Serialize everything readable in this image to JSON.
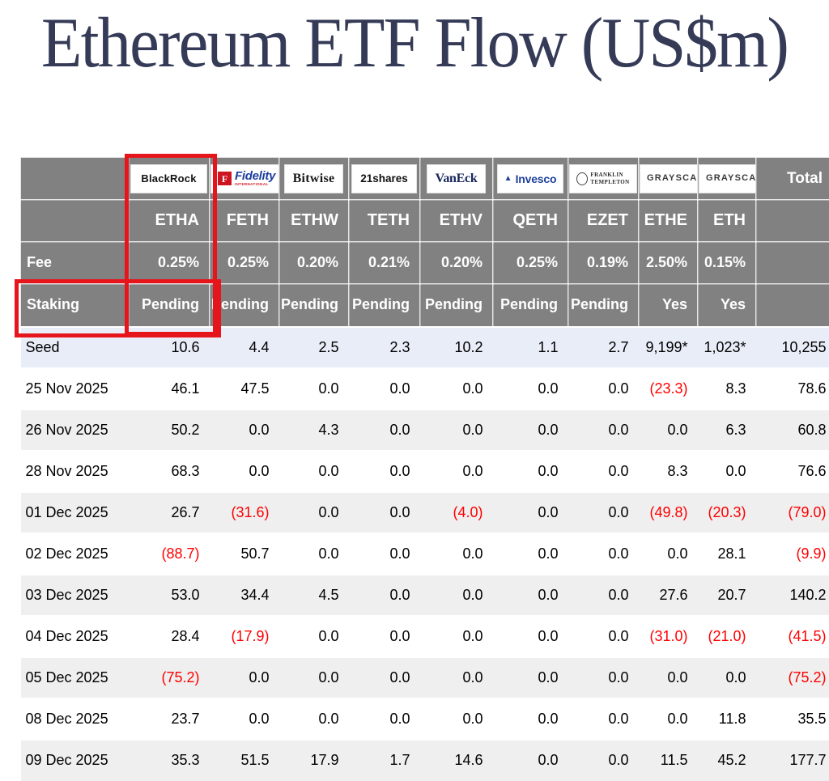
{
  "title": "Ethereum ETF Flow (US$m)",
  "colors": {
    "header_bg": "#818181",
    "seed_row_bg": "#e9edf8",
    "alt_row_bg": "#efefef",
    "negative_text": "#ff0000",
    "highlight_red": "#e6151c",
    "title_text": "#353b57"
  },
  "table": {
    "total_label": "Total",
    "fee_label": "Fee",
    "staking_label": "Staking",
    "providers": [
      {
        "ticker": "ETHA",
        "fee": "0.25%",
        "staking": "Pending",
        "logo": {
          "style": "blackrock",
          "text": "BlackRock"
        }
      },
      {
        "ticker": "FETH",
        "fee": "0.25%",
        "staking": "Pending",
        "logo": {
          "style": "fidelity",
          "icon": "F",
          "text": "Fidelity",
          "subtext": "INTERNATIONAL"
        }
      },
      {
        "ticker": "ETHW",
        "fee": "0.20%",
        "staking": "Pending",
        "logo": {
          "style": "bitwise",
          "text": "Bitwise"
        }
      },
      {
        "ticker": "TETH",
        "fee": "0.21%",
        "staking": "Pending",
        "logo": {
          "style": "shares21",
          "text": "21shares"
        }
      },
      {
        "ticker": "ETHV",
        "fee": "0.20%",
        "staking": "Pending",
        "logo": {
          "style": "vaneck",
          "text": "VanEck"
        }
      },
      {
        "ticker": "QETH",
        "fee": "0.25%",
        "staking": "Pending",
        "logo": {
          "style": "invesco",
          "icon": "▲",
          "text": "Invesco"
        }
      },
      {
        "ticker": "EZET",
        "fee": "0.19%",
        "staking": "Pending",
        "logo": {
          "style": "franklin",
          "lines": [
            "FRANKLIN",
            "TEMPLETON"
          ]
        }
      },
      {
        "ticker": "ETHE",
        "fee": "2.50%",
        "staking": "Yes",
        "logo": {
          "style": "grayscale",
          "text": "GRAYSCALE"
        }
      },
      {
        "ticker": "ETH",
        "fee": "0.15%",
        "staking": "Yes",
        "logo": {
          "style": "grayscale",
          "text": "GRAYSCALE"
        }
      }
    ],
    "rows": [
      {
        "label": "Seed",
        "values": [
          "10.6",
          "4.4",
          "2.5",
          "2.3",
          "10.2",
          "1.1",
          "2.7",
          "9,199*",
          "1,023*",
          "10,255"
        ]
      },
      {
        "label": "25 Nov 2025",
        "values": [
          "46.1",
          "47.5",
          "0.0",
          "0.0",
          "0.0",
          "0.0",
          "0.0",
          "(23.3)",
          "8.3",
          "78.6"
        ]
      },
      {
        "label": "26 Nov 2025",
        "values": [
          "50.2",
          "0.0",
          "4.3",
          "0.0",
          "0.0",
          "0.0",
          "0.0",
          "0.0",
          "6.3",
          "60.8"
        ]
      },
      {
        "label": "28 Nov 2025",
        "values": [
          "68.3",
          "0.0",
          "0.0",
          "0.0",
          "0.0",
          "0.0",
          "0.0",
          "8.3",
          "0.0",
          "76.6"
        ]
      },
      {
        "label": "01 Dec 2025",
        "values": [
          "26.7",
          "(31.6)",
          "0.0",
          "0.0",
          "(4.0)",
          "0.0",
          "0.0",
          "(49.8)",
          "(20.3)",
          "(79.0)"
        ]
      },
      {
        "label": "02 Dec 2025",
        "values": [
          "(88.7)",
          "50.7",
          "0.0",
          "0.0",
          "0.0",
          "0.0",
          "0.0",
          "0.0",
          "28.1",
          "(9.9)"
        ]
      },
      {
        "label": "03 Dec 2025",
        "values": [
          "53.0",
          "34.4",
          "4.5",
          "0.0",
          "0.0",
          "0.0",
          "0.0",
          "27.6",
          "20.7",
          "140.2"
        ]
      },
      {
        "label": "04 Dec 2025",
        "values": [
          "28.4",
          "(17.9)",
          "0.0",
          "0.0",
          "0.0",
          "0.0",
          "0.0",
          "(31.0)",
          "(21.0)",
          "(41.5)"
        ]
      },
      {
        "label": "05 Dec 2025",
        "values": [
          "(75.2)",
          "0.0",
          "0.0",
          "0.0",
          "0.0",
          "0.0",
          "0.0",
          "0.0",
          "0.0",
          "(75.2)"
        ]
      },
      {
        "label": "08 Dec 2025",
        "values": [
          "23.7",
          "0.0",
          "0.0",
          "0.0",
          "0.0",
          "0.0",
          "0.0",
          "0.0",
          "11.8",
          "35.5"
        ]
      },
      {
        "label": "09 Dec 2025",
        "values": [
          "35.3",
          "51.5",
          "17.9",
          "1.7",
          "14.6",
          "0.0",
          "0.0",
          "11.5",
          "45.2",
          "177.7"
        ]
      }
    ]
  },
  "annotations": {
    "column_highlight": "ETHA column",
    "row_highlight": "Staking row"
  }
}
